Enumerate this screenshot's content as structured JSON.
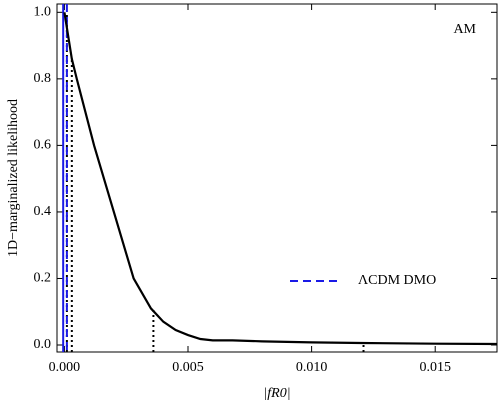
{
  "chart_data": {
    "type": "line",
    "ylabel": "1D−marginalized likelihood",
    "xlabel": "|fR0|",
    "annotation": "AM",
    "x": [
      0,
      0.0003,
      0.0005,
      0.0012,
      0.002,
      0.0028,
      0.0035,
      0.004,
      0.0045,
      0.005,
      0.0055,
      0.006,
      0.0068,
      0.008,
      0.01,
      0.012,
      0.015,
      0.0175
    ],
    "values": [
      1.0,
      0.86,
      0.8,
      0.6,
      0.4,
      0.2,
      0.11,
      0.07,
      0.045,
      0.03,
      0.018,
      0.014,
      0.014,
      0.011,
      0.008,
      0.006,
      0.004,
      0.003
    ],
    "color": "#000000",
    "reference_lines": [
      {
        "name": "ΛCDM DMO",
        "x": 0.0001,
        "color": "#1a1ae6",
        "style": "dashed"
      }
    ],
    "solid_lines": [
      {
        "x": -5e-05,
        "color": "#1a1ae6"
      }
    ],
    "interval_lines": [
      {
        "x": 0.0001,
        "height": 1.0
      },
      {
        "x": 0.0003,
        "height": 0.86
      },
      {
        "x": 0.0036,
        "height": 0.11
      },
      {
        "x": 0.0121,
        "height": 0.005
      }
    ],
    "interval_color": "#000000",
    "xlim": [
      -0.0003,
      0.0175
    ],
    "ylim": [
      -0.021,
      1.025
    ],
    "xticks": [
      {
        "value": 0,
        "label": "0.000"
      },
      {
        "value": 0.005,
        "label": "0.005"
      },
      {
        "value": 0.01,
        "label": "0.010"
      },
      {
        "value": 0.015,
        "label": "0.015"
      }
    ],
    "yticks": [
      {
        "value": 0,
        "label": "0.0"
      },
      0.2,
      0.4,
      0.6,
      0.8,
      {
        "value": 1,
        "label": "1.0"
      }
    ],
    "legend_position": "lower right",
    "grid": false
  }
}
